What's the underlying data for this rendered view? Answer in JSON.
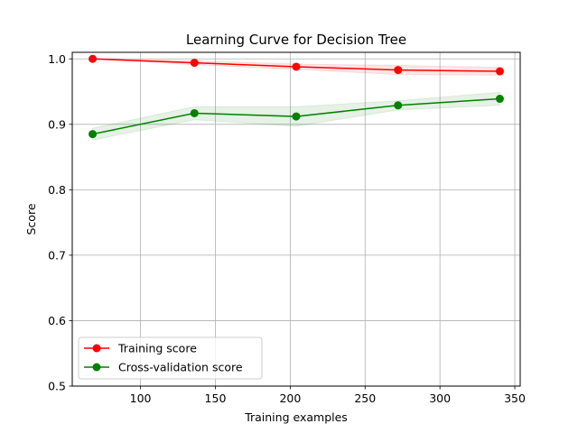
{
  "chart_data": {
    "type": "line",
    "title": "Learning Curve for Decision Tree",
    "xlabel": "Training examples",
    "ylabel": "Score",
    "xlim": [
      54.4,
      353.6
    ],
    "ylim": [
      0.5,
      1.01
    ],
    "xticks": [
      100,
      150,
      200,
      250,
      300,
      350
    ],
    "yticks": [
      0.5,
      0.6,
      0.7,
      0.8,
      0.9,
      1.0
    ],
    "xtick_labels": [
      "100",
      "150",
      "200",
      "250",
      "300",
      "350"
    ],
    "ytick_labels": [
      "0.5",
      "0.6",
      "0.7",
      "0.8",
      "0.9",
      "1.0"
    ],
    "grid": true,
    "legend_position": "lower-left",
    "x": [
      68,
      136,
      204,
      272,
      340
    ],
    "series": [
      {
        "name": "Training score",
        "color": "#ff0000",
        "values": [
          1.0,
          0.994,
          0.988,
          0.983,
          0.981
        ],
        "std": [
          0.0,
          0.003,
          0.004,
          0.007,
          0.006
        ]
      },
      {
        "name": "Cross-validation score",
        "color": "#008000",
        "values": [
          0.885,
          0.917,
          0.912,
          0.929,
          0.939
        ],
        "std": [
          0.009,
          0.01,
          0.015,
          0.007,
          0.01
        ]
      }
    ]
  }
}
